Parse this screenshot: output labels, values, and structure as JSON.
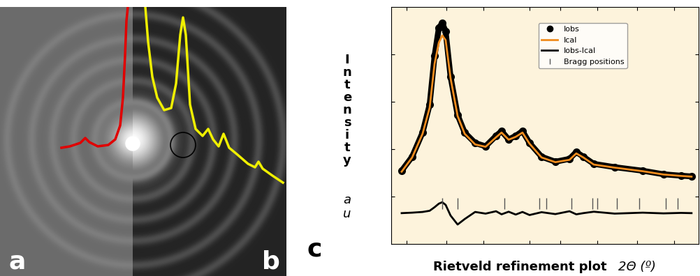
{
  "panel_labels": [
    "a",
    "b",
    "c"
  ],
  "profiles": {
    "xlim": [
      0,
      410
    ],
    "ylim": [
      0,
      386
    ],
    "series": [
      {
        "color": "#e00000",
        "x": [
          88,
          100,
          115,
          122,
          128,
          140,
          155,
          165,
          172,
          176,
          179,
          181,
          183
        ],
        "values": [
          184,
          186,
          191,
          198,
          192,
          186,
          188,
          196,
          216,
          256,
          316,
          366,
          386
        ]
      },
      {
        "color": "#f0f000",
        "x": [
          208,
          212,
          218,
          225,
          235,
          245,
          252,
          258,
          262,
          266,
          272,
          280,
          290,
          298,
          305,
          313,
          320,
          328,
          340,
          355,
          365,
          370,
          376,
          390,
          405
        ],
        "values": [
          386,
          336,
          286,
          256,
          238,
          241,
          276,
          346,
          371,
          346,
          246,
          211,
          201,
          211,
          196,
          186,
          204,
          184,
          174,
          161,
          156,
          164,
          154,
          144,
          134
        ]
      }
    ]
  },
  "chart_data": {
    "type": "line",
    "ylabel": "Intensity",
    "ylabel_unit": "a u",
    "xlabel": "Rietveld refinement plot",
    "xlabel_unit": "2Θ (º)",
    "xlim": [
      0,
      100
    ],
    "ylim": [
      0,
      100
    ],
    "xticks": [
      5,
      18,
      30,
      45,
      55,
      67,
      80,
      92
    ],
    "yticks": [
      20,
      40,
      60,
      80
    ],
    "tick_labels": false,
    "legend": "upper right",
    "x": [
      3.4,
      6.8,
      10.2,
      12.5,
      14.1,
      15.5,
      16.6,
      17.7,
      19.3,
      21.6,
      23.9,
      27.3,
      30.7,
      34.1,
      35.9,
      38.2,
      40.5,
      42.7,
      45.0,
      48.9,
      53.4,
      58.0,
      60.2,
      62.5,
      65.9,
      72.7,
      81.8,
      88.6,
      94.3,
      97.7
    ],
    "series": [
      {
        "name": "Iobs",
        "type": "scatter",
        "marker": "circle",
        "color": "#000000",
        "values": [
          30.9,
          36.8,
          47.0,
          58.8,
          79.4,
          91.2,
          93.2,
          89.7,
          70.6,
          54.4,
          47.0,
          42.6,
          41.2,
          45.6,
          47.6,
          44.1,
          45.6,
          47.6,
          42.6,
          36.8,
          34.7,
          35.9,
          38.8,
          36.8,
          33.8,
          32.4,
          30.9,
          29.4,
          28.8,
          28.5
        ]
      },
      {
        "name": "Ical",
        "type": "line",
        "line_style": "solid",
        "color": "#f08c1e",
        "values": [
          30.5,
          36.5,
          46.5,
          57.5,
          76.0,
          85.0,
          88.0,
          86.0,
          70.0,
          54.0,
          46.5,
          42.0,
          41.0,
          45.0,
          47.0,
          44.0,
          45.2,
          47.0,
          42.3,
          36.5,
          34.5,
          35.5,
          38.2,
          36.5,
          33.5,
          32.2,
          30.7,
          29.3,
          28.7,
          28.4
        ]
      },
      {
        "name": "Iobs-Ical",
        "type": "line",
        "line_style": "solid",
        "color": "#000000",
        "values": [
          13.0,
          13.2,
          13.5,
          14.0,
          15.5,
          17.0,
          17.6,
          16.5,
          12.0,
          8.2,
          10.5,
          13.5,
          12.8,
          13.8,
          12.5,
          13.6,
          12.4,
          13.5,
          12.2,
          13.4,
          12.6,
          13.8,
          12.5,
          13.0,
          13.6,
          12.8,
          13.2,
          12.9,
          13.1,
          13.0
        ]
      }
    ],
    "bragg": {
      "name": "Bragg positions",
      "color": "#555555",
      "level": 17,
      "positions": [
        16.6,
        21.6,
        36.8,
        48.2,
        50.5,
        58.6,
        65.5,
        67.0,
        73.4,
        80.7,
        89.3,
        93.2
      ]
    }
  }
}
